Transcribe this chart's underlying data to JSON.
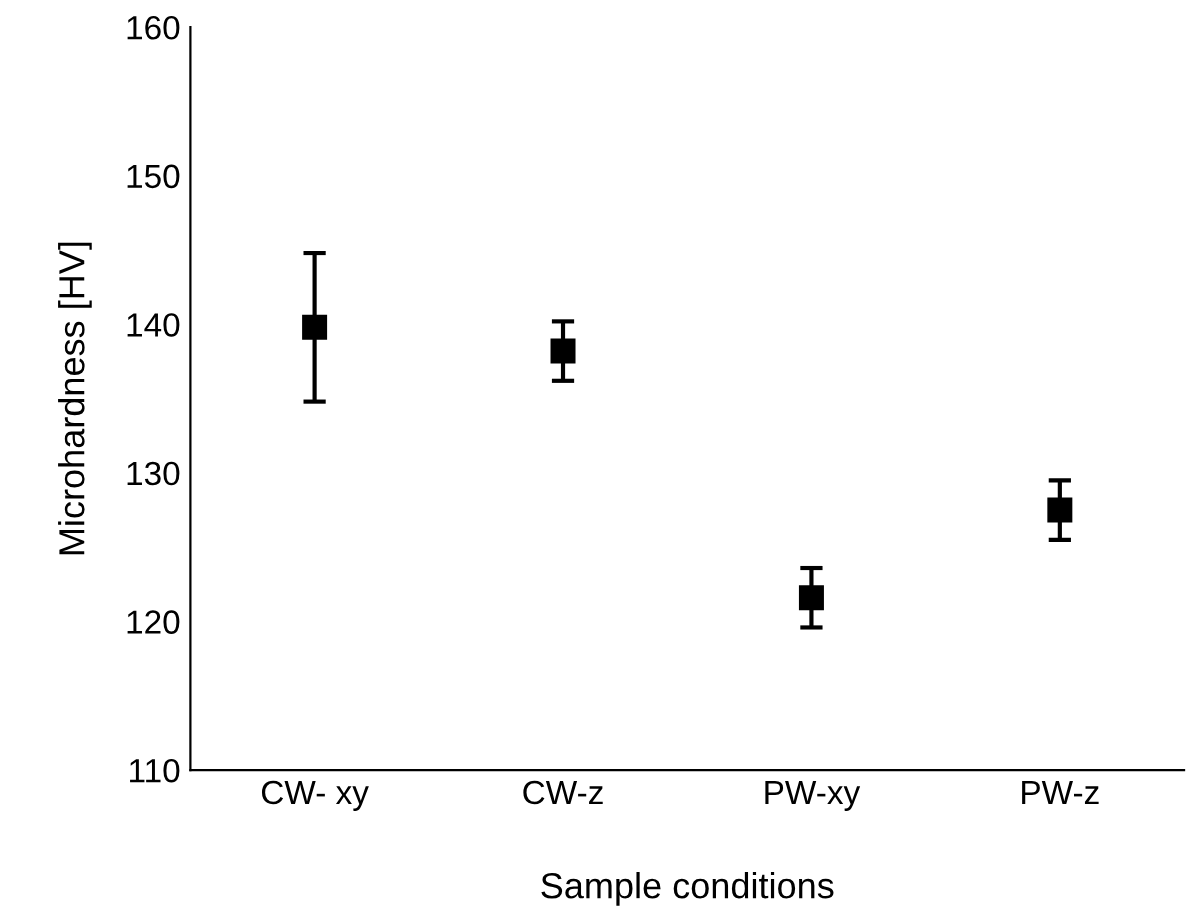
{
  "chart_data": {
    "type": "scatter",
    "xlabel": "Sample conditions",
    "ylabel": "Microhardness [HV]",
    "categories": [
      "CW- xy",
      "CW-z",
      "PW-xy",
      "PW-z"
    ],
    "series": [
      {
        "color": "#000000",
        "values": [
          139.8,
          138.2,
          121.6,
          127.5
        ],
        "errors": [
          5,
          2,
          2,
          2
        ]
      }
    ],
    "marker": "square",
    "ylim": [
      110,
      160
    ],
    "yticks": [
      110,
      120,
      130,
      140,
      150,
      160
    ],
    "grid": false,
    "legend": false
  }
}
